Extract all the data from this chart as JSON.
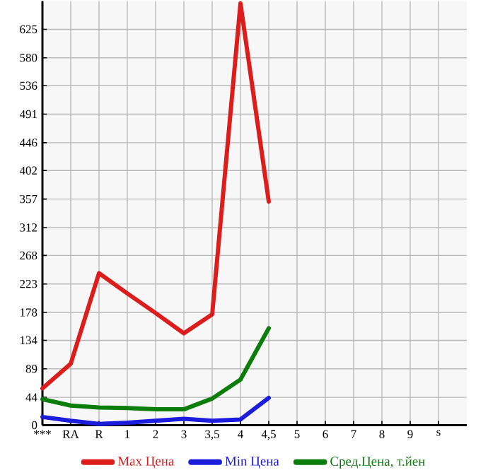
{
  "chart_data": {
    "type": "line",
    "categories": [
      "***",
      "RA",
      "R",
      "1",
      "2",
      "3",
      "3,5",
      "4",
      "4,5",
      "5",
      "6",
      "7",
      "8",
      "9",
      "s"
    ],
    "series": [
      {
        "name": "Max Цена",
        "color": "#dd1c1c",
        "values": [
          58,
          97,
          240,
          208,
          177,
          145,
          175,
          666,
          353,
          null,
          null,
          null,
          null,
          null,
          null
        ]
      },
      {
        "name": "Min Цена",
        "color": "#1c1cdd",
        "values": [
          13,
          7,
          2,
          4,
          7,
          10,
          7,
          9,
          43,
          null,
          null,
          null,
          null,
          null,
          null
        ]
      },
      {
        "name": "Сред.Цена, т.йен",
        "color": "#0a7d0a",
        "values": [
          41,
          31,
          28,
          27,
          25,
          25,
          42,
          72,
          153,
          null,
          null,
          null,
          null,
          null,
          null
        ]
      }
    ],
    "ylim": [
      0,
      669.6
    ],
    "yticks": [
      0,
      44,
      89,
      134,
      178,
      223,
      268,
      312,
      357,
      402,
      446,
      491,
      536,
      580,
      625
    ],
    "grid": true,
    "legend": "bottom",
    "marker": "none",
    "line_style": "solid"
  }
}
